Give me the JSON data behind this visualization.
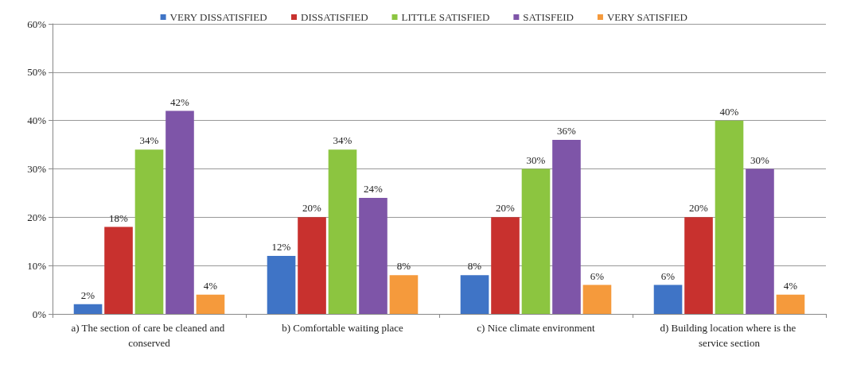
{
  "chart_data": {
    "type": "bar",
    "categories": [
      "a) The section of care be cleaned and conserved",
      "b) Comfortable waiting place",
      "c) Nice climate environment",
      "d) Building location where is the service section"
    ],
    "series": [
      {
        "name": "VERY DISSATISFIED",
        "color": "#3f74c6",
        "values": [
          2,
          12,
          8,
          6
        ],
        "value_labels": [
          "2%",
          "12%",
          "8%",
          "6%"
        ]
      },
      {
        "name": "DISSATISFIED",
        "color": "#c8312e",
        "values": [
          18,
          20,
          20,
          20
        ],
        "value_labels": [
          "18%",
          "20%",
          "20%",
          "20%"
        ]
      },
      {
        "name": "LITTLE SATISFIED",
        "color": "#8cc540",
        "values": [
          34,
          34,
          30,
          40
        ],
        "value_labels": [
          "34%",
          "34%",
          "30%",
          "40%"
        ]
      },
      {
        "name": "SATISFEID",
        "color": "#7e55a8",
        "values": [
          42,
          24,
          36,
          30
        ],
        "value_labels": [
          "42%",
          "24%",
          "36%",
          "30%"
        ]
      },
      {
        "name": "VERY SATISFIED",
        "color": "#f59a3c",
        "values": [
          4,
          8,
          6,
          4
        ],
        "value_labels": [
          "4%",
          "8%",
          "6%",
          "4%"
        ]
      }
    ],
    "ylim": [
      0,
      60
    ],
    "yticks": [
      {
        "value": 0,
        "label": "0%"
      },
      {
        "value": 10,
        "label": "10%"
      },
      {
        "value": 20,
        "label": "20%"
      },
      {
        "value": 30,
        "label": "30%"
      },
      {
        "value": 40,
        "label": "40%"
      },
      {
        "value": 50,
        "label": "50%"
      },
      {
        "value": 60,
        "label": "60%"
      }
    ],
    "grid": "y",
    "legend": "top"
  }
}
